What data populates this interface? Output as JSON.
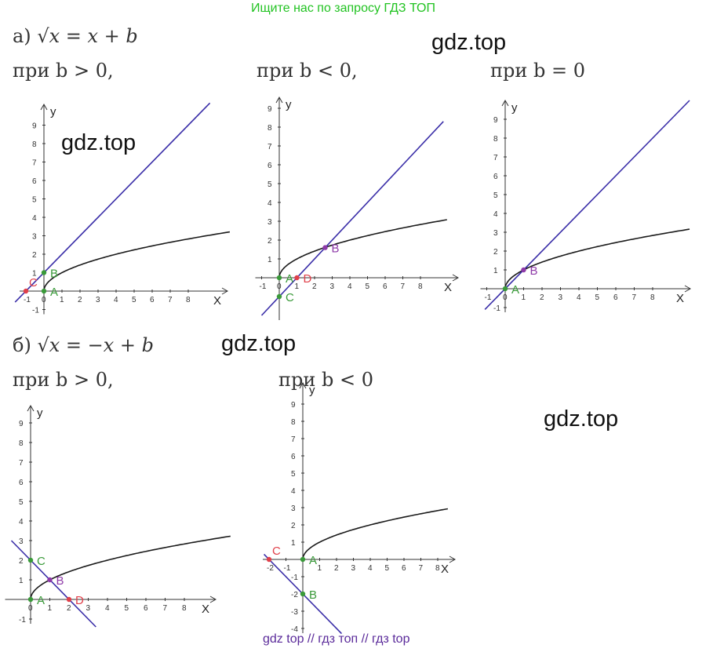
{
  "banner": "Ищите нас по запросу ГДЗ ТОП",
  "watermarks": [
    "gdz.top",
    "gdz.top",
    "gdz.top",
    "gdz.top"
  ],
  "footer": "gdz top  //  гдз топ  //  гдз top",
  "part_a": {
    "label": "а)",
    "equation": "√x = x + b",
    "conditions": [
      "при b > 0,",
      "при b < 0,",
      "при b = 0"
    ]
  },
  "part_b": {
    "label": "б)",
    "equation": "√x = −x + b",
    "conditions": [
      "при b > 0,",
      "при b < 0"
    ]
  },
  "axis_names": {
    "x": "X",
    "y": "y"
  },
  "colors": {
    "curve": "#1a1a1a",
    "line": "#3a2ea8",
    "green": "#3a9a3a",
    "red": "#e0404a",
    "purple": "#8e3aa8"
  },
  "chart_data": [
    {
      "type": "line",
      "title": "а) при b > 0",
      "xlim": [
        -1,
        9
      ],
      "ylim": [
        -1,
        9.5
      ],
      "x_ticks": [
        -1,
        0,
        1,
        2,
        3,
        4,
        5,
        6,
        7,
        8
      ],
      "y_ticks": [
        -1,
        1,
        2,
        3,
        4,
        5,
        6,
        7,
        8,
        9
      ],
      "series": [
        {
          "kind": "sqrt",
          "x_range": [
            0,
            10.3
          ]
        },
        {
          "kind": "line",
          "slope": 1,
          "intercept": 1,
          "x_range": [
            -1.6,
            9.2
          ]
        }
      ],
      "points": [
        {
          "label": "A",
          "x": 0,
          "y": 0,
          "color": "green"
        },
        {
          "label": "B",
          "x": 0,
          "y": 1,
          "color": "green"
        },
        {
          "label": "C",
          "x": -1,
          "y": 0,
          "color": "red"
        }
      ]
    },
    {
      "type": "line",
      "title": "а) при b < 0",
      "xlim": [
        -1,
        9
      ],
      "ylim": [
        -2,
        9.5
      ],
      "x_ticks": [
        -1,
        0,
        1,
        2,
        3,
        4,
        5,
        6,
        7,
        8
      ],
      "y_ticks": [
        1,
        2,
        3,
        4,
        5,
        6,
        7,
        8,
        9
      ],
      "series": [
        {
          "kind": "sqrt",
          "x_range": [
            0,
            9.5
          ]
        },
        {
          "kind": "line",
          "slope": 1,
          "intercept": -1,
          "x_range": [
            -1,
            9.3
          ]
        }
      ],
      "points": [
        {
          "label": "A",
          "x": 0,
          "y": 0,
          "color": "green"
        },
        {
          "label": "C",
          "x": 0,
          "y": -1,
          "color": "green"
        },
        {
          "label": "D",
          "x": 1,
          "y": 0,
          "color": "red"
        },
        {
          "label": "B",
          "x": 2.6,
          "y": 1.6,
          "color": "purple"
        }
      ]
    },
    {
      "type": "line",
      "title": "а) при b = 0",
      "xlim": [
        -1,
        9
      ],
      "ylim": [
        -1,
        9.5
      ],
      "x_ticks": [
        -1,
        0,
        1,
        2,
        3,
        4,
        5,
        6,
        7,
        8
      ],
      "y_ticks": [
        -1,
        1,
        2,
        3,
        4,
        5,
        6,
        7,
        8,
        9
      ],
      "series": [
        {
          "kind": "sqrt",
          "x_range": [
            0,
            10
          ]
        },
        {
          "kind": "line",
          "slope": 1,
          "intercept": 0,
          "x_range": [
            -1.1,
            10
          ]
        }
      ],
      "points": [
        {
          "label": "A",
          "x": 0,
          "y": 0,
          "color": "green"
        },
        {
          "label": "B",
          "x": 1,
          "y": 1,
          "color": "purple"
        }
      ]
    },
    {
      "type": "line",
      "title": "б) при b > 0",
      "xlim": [
        -1,
        9
      ],
      "ylim": [
        -1,
        9.5
      ],
      "x_ticks": [
        0,
        1,
        2,
        3,
        4,
        5,
        6,
        7,
        8
      ],
      "y_ticks": [
        -1,
        1,
        2,
        3,
        4,
        5,
        6,
        7,
        8,
        9
      ],
      "series": [
        {
          "kind": "sqrt",
          "x_range": [
            0,
            10.4
          ]
        },
        {
          "kind": "line",
          "slope": -1,
          "intercept": 2,
          "x_range": [
            -1,
            3.4
          ]
        }
      ],
      "points": [
        {
          "label": "A",
          "x": 0,
          "y": 0,
          "color": "green"
        },
        {
          "label": "C",
          "x": 0,
          "y": 2,
          "color": "green"
        },
        {
          "label": "B",
          "x": 1,
          "y": 1,
          "color": "purple"
        },
        {
          "label": "D",
          "x": 2,
          "y": 0,
          "color": "red"
        }
      ]
    },
    {
      "type": "line",
      "title": "б) при b < 0",
      "xlim": [
        -2,
        8.5
      ],
      "ylim": [
        -4,
        9.5
      ],
      "x_ticks": [
        -2,
        -1,
        1,
        2,
        3,
        4,
        5,
        6,
        7,
        8
      ],
      "y_ticks": [
        -4,
        -3,
        -2,
        -1,
        1,
        2,
        3,
        4,
        5,
        6,
        7,
        8,
        9
      ],
      "series": [
        {
          "kind": "sqrt",
          "x_range": [
            0,
            8.6
          ]
        },
        {
          "kind": "line",
          "slope": -1,
          "intercept": -2,
          "x_range": [
            -2.3,
            2.3
          ]
        }
      ],
      "points": [
        {
          "label": "A",
          "x": 0,
          "y": 0,
          "color": "green"
        },
        {
          "label": "B",
          "x": 0,
          "y": -2,
          "color": "green"
        },
        {
          "label": "C",
          "x": -2,
          "y": 0,
          "color": "red"
        }
      ]
    }
  ]
}
